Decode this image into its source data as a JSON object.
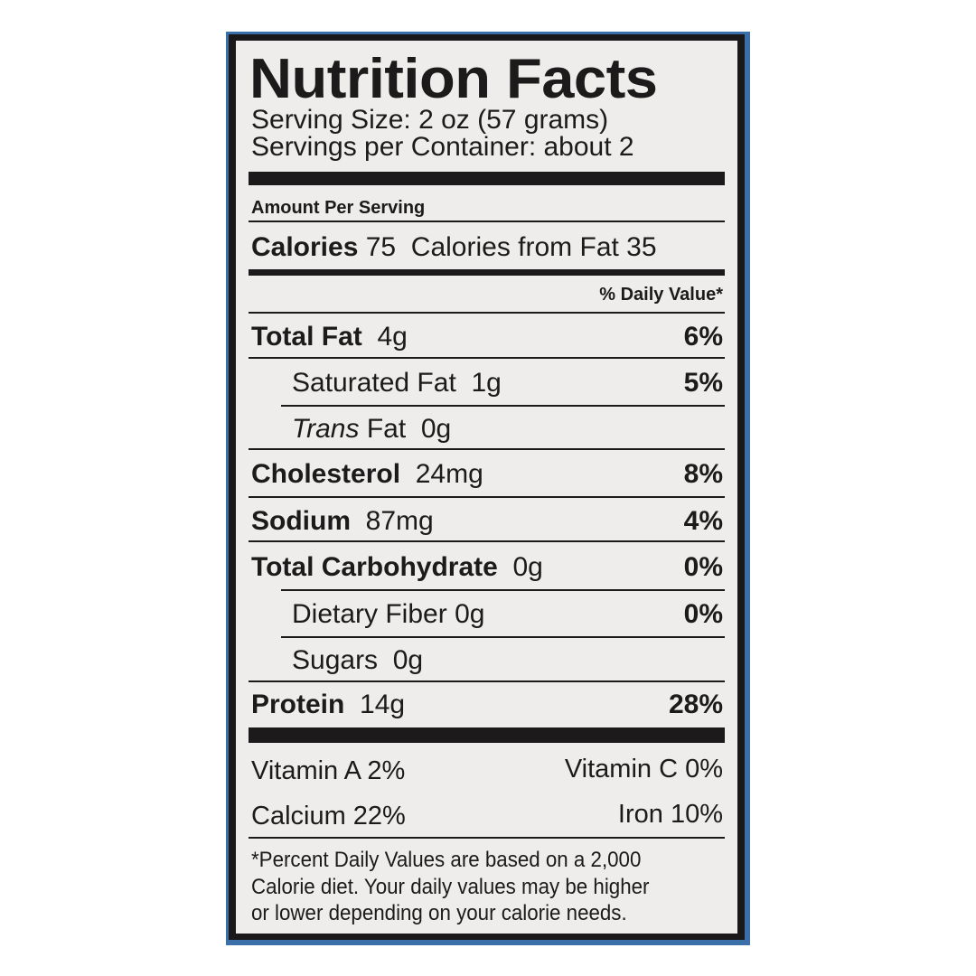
{
  "title": "Nutrition Facts",
  "serving_size": "Serving Size: 2 oz (57 grams)",
  "servings_per_container": "Servings per Container: about 2",
  "amount_per_serving": "Amount Per Serving",
  "calories": {
    "label": "Calories",
    "value": "75",
    "from_fat": "Calories from Fat 35"
  },
  "daily_value_header": "% Daily Value*",
  "nutrients": [
    {
      "label": "Total Fat",
      "amount": "4g",
      "dv": "6%"
    },
    {
      "label": "Saturated Fat",
      "amount": "1g",
      "dv": "5%"
    },
    {
      "label": "Trans",
      "label_suffix": "Fat",
      "amount": "0g"
    },
    {
      "label": "Cholesterol",
      "amount": "24mg",
      "dv": "8%"
    },
    {
      "label": "Sodium",
      "amount": "87mg",
      "dv": "4%"
    },
    {
      "label": "Total Carbohydrate",
      "amount": "0g",
      "dv": "0%"
    },
    {
      "label": "Dietary Fiber",
      "amount": "0g",
      "dv": "0%"
    },
    {
      "label": "Sugars",
      "amount": "0g"
    },
    {
      "label": "Protein",
      "amount": "14g",
      "dv": "28%"
    }
  ],
  "vitamins": {
    "vitamin_a": "Vitamin A 2%",
    "vitamin_c": "Vitamin C  0%",
    "calcium": "Calcium  22%",
    "iron": "Iron  10%"
  },
  "footnote": [
    "*Percent Daily Values are based on a 2,000",
    "Calorie diet. Your daily values may be higher",
    "or lower depending on your calorie needs."
  ]
}
